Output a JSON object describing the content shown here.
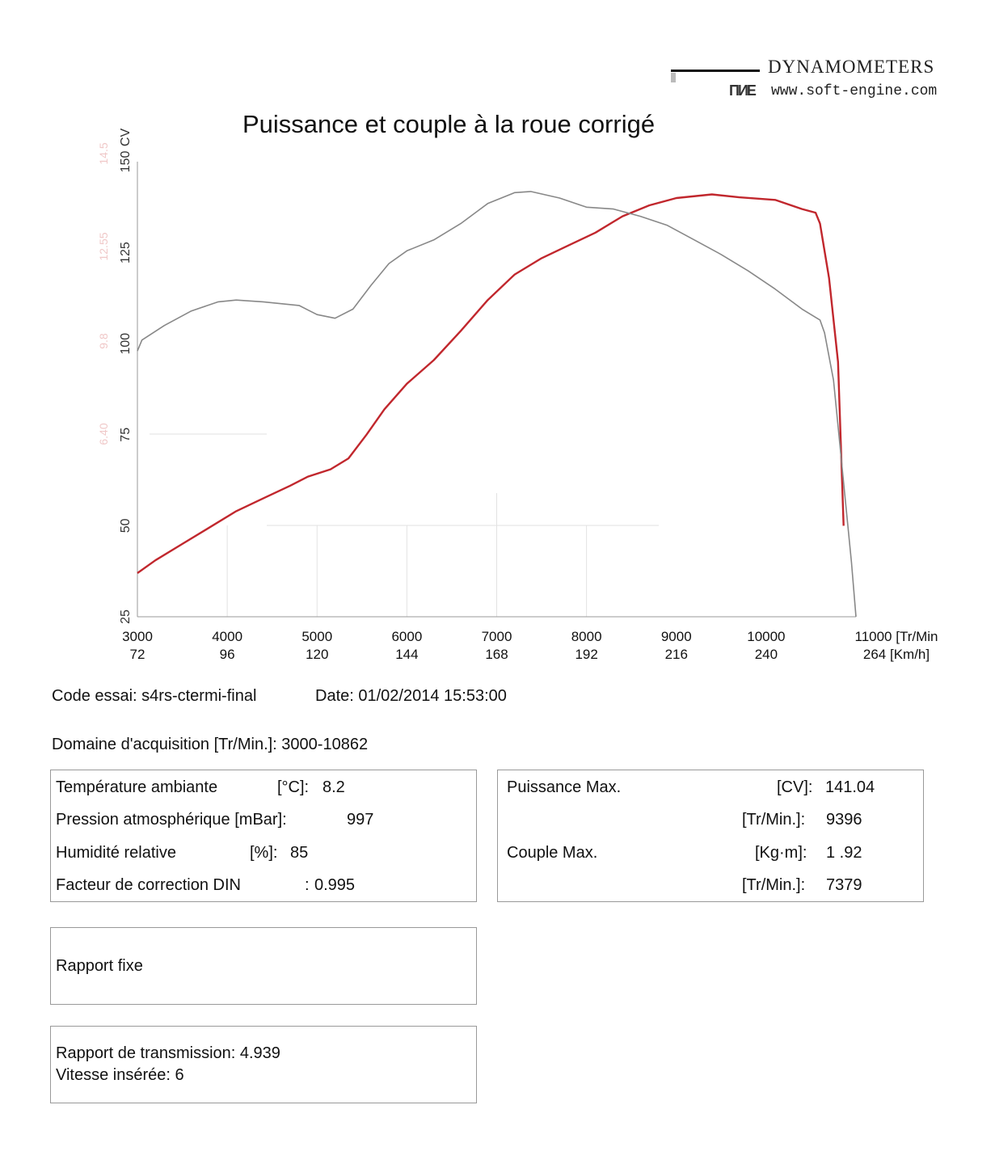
{
  "brand": {
    "name": "DYNAMOMETERS",
    "mark": "ПИE",
    "url": "www.soft-engine.com"
  },
  "chart_data": {
    "type": "line",
    "title": "Puissance et couple à la roue corrigé",
    "x_range": [
      3000,
      11000
    ],
    "x_ticks": [
      {
        "rpm": "3000",
        "kmh": "72"
      },
      {
        "rpm": "4000",
        "kmh": "96"
      },
      {
        "rpm": "5000",
        "kmh": "120"
      },
      {
        "rpm": "6000",
        "kmh": "144"
      },
      {
        "rpm": "7000",
        "kmh": "168"
      },
      {
        "rpm": "8000",
        "kmh": "192"
      },
      {
        "rpm": "9000",
        "kmh": "216"
      },
      {
        "rpm": "10000",
        "kmh": "240"
      },
      {
        "rpm": "11000 [Tr/Min",
        "kmh": "264 [Km/h]"
      }
    ],
    "y_range": [
      25,
      150
    ],
    "y_ticks": [
      "25",
      "50",
      "75",
      "100",
      "125",
      "150"
    ],
    "ylabel": "CV",
    "secondary_y_ticks": [
      "6.40",
      "9.8",
      "12.55",
      "14.5"
    ],
    "grid": "partial",
    "series": [
      {
        "color": "#c1272d",
        "points": [
          [
            3000,
            37
          ],
          [
            3200,
            40.5
          ],
          [
            3500,
            45
          ],
          [
            3800,
            49.5
          ],
          [
            4100,
            54
          ],
          [
            4400,
            57.5
          ],
          [
            4700,
            61
          ],
          [
            4900,
            63.5
          ],
          [
            5150,
            65.5
          ],
          [
            5350,
            68.5
          ],
          [
            5550,
            75
          ],
          [
            5750,
            82
          ],
          [
            6000,
            89
          ],
          [
            6300,
            95.5
          ],
          [
            6600,
            103.5
          ],
          [
            6900,
            112
          ],
          [
            7200,
            119
          ],
          [
            7500,
            123.5
          ],
          [
            7800,
            127
          ],
          [
            8100,
            130.5
          ],
          [
            8400,
            135
          ],
          [
            8700,
            138
          ],
          [
            9000,
            140
          ],
          [
            9396,
            141
          ],
          [
            9700,
            140.2
          ],
          [
            10100,
            139.5
          ],
          [
            10400,
            137
          ],
          [
            10550,
            136
          ],
          [
            10600,
            133
          ],
          [
            10700,
            118
          ],
          [
            10800,
            95
          ],
          [
            10862,
            50
          ]
        ]
      },
      {
        "color": "#888888",
        "points": [
          [
            3000,
            98
          ],
          [
            3050,
            101
          ],
          [
            3300,
            105
          ],
          [
            3600,
            109
          ],
          [
            3900,
            111.5
          ],
          [
            4100,
            112
          ],
          [
            4400,
            111.5
          ],
          [
            4800,
            110.5
          ],
          [
            5000,
            108
          ],
          [
            5200,
            107
          ],
          [
            5400,
            109.5
          ],
          [
            5600,
            116
          ],
          [
            5800,
            122
          ],
          [
            6000,
            125.5
          ],
          [
            6300,
            128.5
          ],
          [
            6600,
            133
          ],
          [
            6900,
            138.5
          ],
          [
            7200,
            141.5
          ],
          [
            7379,
            141.8
          ],
          [
            7700,
            140
          ],
          [
            8000,
            137.5
          ],
          [
            8300,
            137
          ],
          [
            8600,
            135
          ],
          [
            8900,
            132.5
          ],
          [
            9200,
            128.5
          ],
          [
            9500,
            124.5
          ],
          [
            9800,
            120
          ],
          [
            10100,
            115
          ],
          [
            10400,
            109.5
          ],
          [
            10600,
            106.5
          ],
          [
            10650,
            103
          ],
          [
            10750,
            90
          ],
          [
            10850,
            65
          ],
          [
            10950,
            40
          ],
          [
            11000,
            25
          ]
        ]
      }
    ]
  },
  "info": {
    "code_essai": "Code essai: s4rs-ctermi-final",
    "date": "Date: 01/02/2014 15:53:00",
    "domaine": "Domaine d'acquisition [Tr/Min.]: 3000-10862"
  },
  "conditions": [
    {
      "label": "Température ambiante",
      "unit": "[°C]:",
      "value": "8.2"
    },
    {
      "label": "Pression atmosphérique [mBar]:",
      "unit": "",
      "value": "997"
    },
    {
      "label": "Humidité relative",
      "unit": "[%]:",
      "value": "85"
    },
    {
      "label": "Facteur de correction DIN",
      "unit": ":",
      "value": "0.995"
    }
  ],
  "maxima": {
    "puissance_label": "Puissance Max.",
    "puissance_unit": "[CV]:",
    "puissance_value": "141.04",
    "puissance_rpm_unit": "[Tr/Min.]:",
    "puissance_rpm": "9396",
    "couple_label": "Couple Max.",
    "couple_unit": "[Kg·m]:",
    "couple_value": "1 .92",
    "couple_rpm_unit": "[Tr/Min.]:",
    "couple_rpm": "7379"
  },
  "rapport_fixe": "Rapport fixe",
  "transmission": {
    "rapport": "Rapport de transmission: 4.939",
    "vitesse": "Vitesse insérée: 6"
  }
}
